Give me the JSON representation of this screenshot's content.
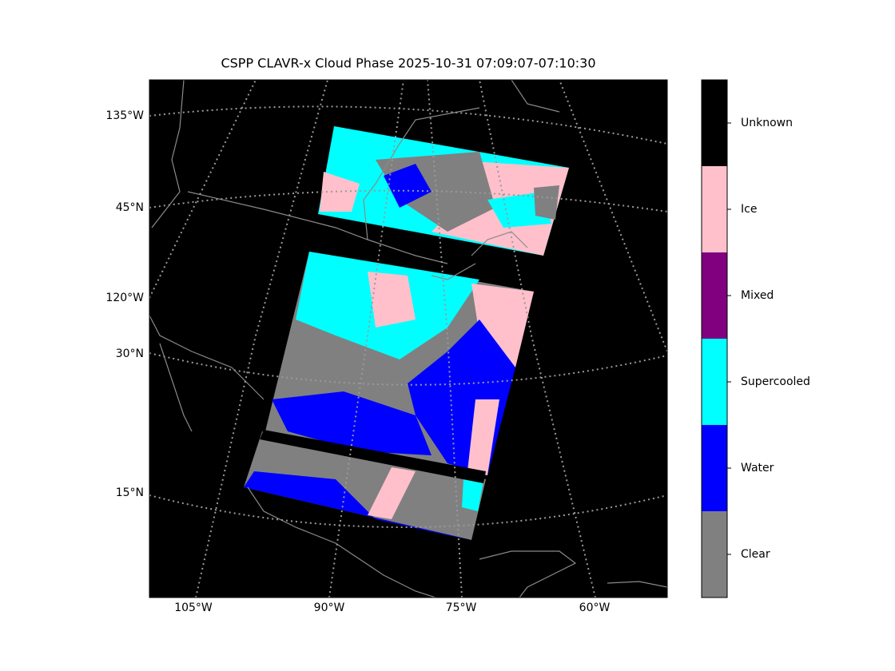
{
  "title": "CSPP CLAVR-x Cloud Phase 2025-10-31 07:09:07-07:10:30",
  "map": {
    "lon_labels": [
      "105°W",
      "90°W",
      "75°W",
      "60°W"
    ],
    "lat_labels": [
      "135°W",
      "45°N",
      "120°W",
      "30°N",
      "15°N"
    ]
  },
  "colorbar": {
    "classes": [
      {
        "label": "Clear",
        "color": "#808080"
      },
      {
        "label": "Water",
        "color": "#0000ff"
      },
      {
        "label": "Supercooled",
        "color": "#00ffff"
      },
      {
        "label": "Mixed",
        "color": "#800080"
      },
      {
        "label": "Ice",
        "color": "#ffc0cb"
      },
      {
        "label": "Unknown",
        "color": "#000000"
      }
    ]
  }
}
